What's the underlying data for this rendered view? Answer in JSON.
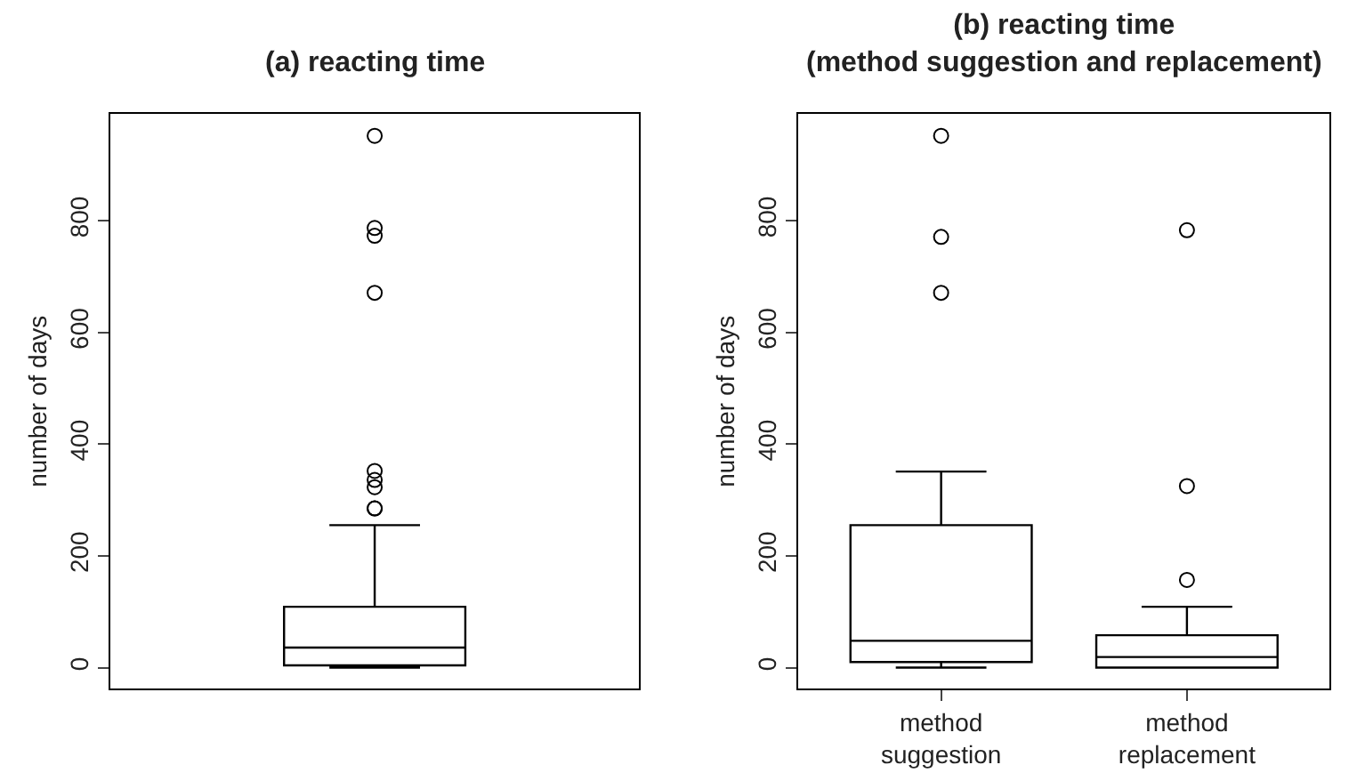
{
  "chart_data": [
    {
      "type": "box",
      "title": "(a) reacting time",
      "ylabel": "number of days",
      "categories": [
        null
      ],
      "tick_labels": "y",
      "ylim": [
        -38,
        991
      ],
      "yticks": [
        0,
        200,
        400,
        600,
        800
      ],
      "boxes": [
        {
          "low": 0,
          "q1": 4,
          "median": 36,
          "q3": 109,
          "high": 255,
          "outliers": [
            285,
            285,
            323,
            336,
            352,
            671,
            773,
            787,
            952
          ]
        }
      ]
    },
    {
      "type": "box",
      "title": "(b) reacting time\n(method suggestion and replacement)",
      "ylabel": "number of days",
      "categories": [
        "method\nsuggestion",
        "method\nreplacement"
      ],
      "ylim": [
        -38,
        991
      ],
      "yticks": [
        0,
        200,
        400,
        600,
        800
      ],
      "boxes": [
        {
          "low": 0,
          "q1": 10,
          "median": 48,
          "q3": 255,
          "high": 351,
          "outliers": [
            671,
            771,
            952
          ]
        },
        {
          "low": 0,
          "q1": 0,
          "median": 19,
          "q3": 58,
          "high": 109,
          "outliers": [
            157,
            325,
            783
          ]
        }
      ]
    }
  ]
}
